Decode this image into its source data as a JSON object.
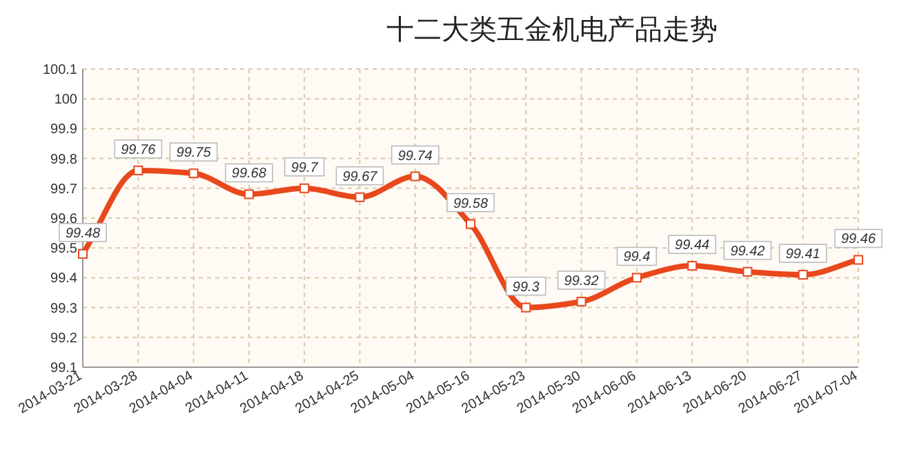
{
  "chart_data": {
    "type": "line",
    "title": "十二大类五金机电产品走势",
    "categories": [
      "2014-03-21",
      "2014-03-28",
      "2014-04-04",
      "2014-04-11",
      "2014-04-18",
      "2014-04-25",
      "2014-05-04",
      "2014-05-16",
      "2014-05-23",
      "2014-05-30",
      "2014-06-06",
      "2014-06-13",
      "2014-06-20",
      "2014-06-27",
      "2014-07-04"
    ],
    "series": [
      {
        "color": "#e8481c",
        "values": [
          99.48,
          99.76,
          99.75,
          99.68,
          99.7,
          99.67,
          99.74,
          99.58,
          99.3,
          99.32,
          99.4,
          99.44,
          99.42,
          99.41,
          99.46
        ]
      }
    ],
    "ylim": [
      99.1,
      100.1
    ],
    "yticks": [
      99.1,
      99.2,
      99.3,
      99.4,
      99.5,
      99.6,
      99.7,
      99.8,
      99.9,
      100,
      100.1
    ],
    "grid": true,
    "marker": "square",
    "data_labels": true
  }
}
